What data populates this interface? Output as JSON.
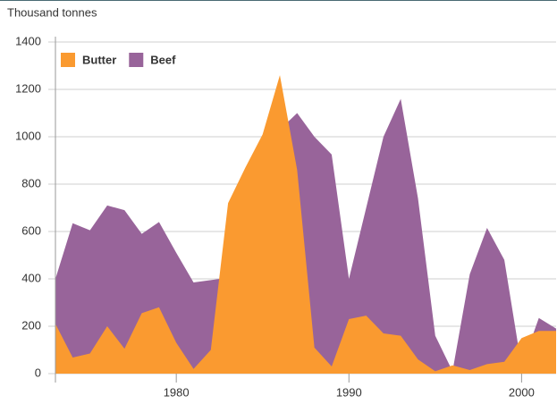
{
  "chart_data": {
    "type": "area",
    "title": "Thousand tonnes",
    "x": [
      1973,
      1974,
      1975,
      1976,
      1977,
      1978,
      1979,
      1980,
      1981,
      1982,
      1983,
      1984,
      1985,
      1986,
      1987,
      1988,
      1989,
      1990,
      1991,
      1992,
      1993,
      1994,
      1995,
      1996,
      1997,
      1998,
      1999,
      2000,
      2001,
      2002
    ],
    "series": [
      {
        "name": "Beef",
        "color": "#98649a",
        "values": [
          400,
          635,
          605,
          710,
          690,
          590,
          640,
          510,
          385,
          395,
          405,
          560,
          960,
          1030,
          1100,
          1000,
          925,
          400,
          700,
          1000,
          1160,
          740,
          160,
          10,
          420,
          615,
          480,
          30,
          235,
          190
        ]
      },
      {
        "name": "Butter",
        "color": "#fa9a30",
        "values": [
          210,
          68,
          85,
          200,
          105,
          255,
          280,
          130,
          20,
          100,
          720,
          870,
          1010,
          1260,
          860,
          110,
          30,
          230,
          245,
          170,
          160,
          60,
          10,
          35,
          15,
          40,
          50,
          150,
          180,
          180
        ]
      }
    ],
    "legend_order": [
      1,
      0
    ],
    "xlim": [
      1973,
      2002
    ],
    "xticks": [
      1980,
      1990,
      2000
    ],
    "ylim": [
      0,
      1400
    ],
    "yticks": [
      0,
      200,
      400,
      600,
      800,
      1000,
      1200,
      1400
    ],
    "grid": true,
    "legend": "top-left"
  }
}
